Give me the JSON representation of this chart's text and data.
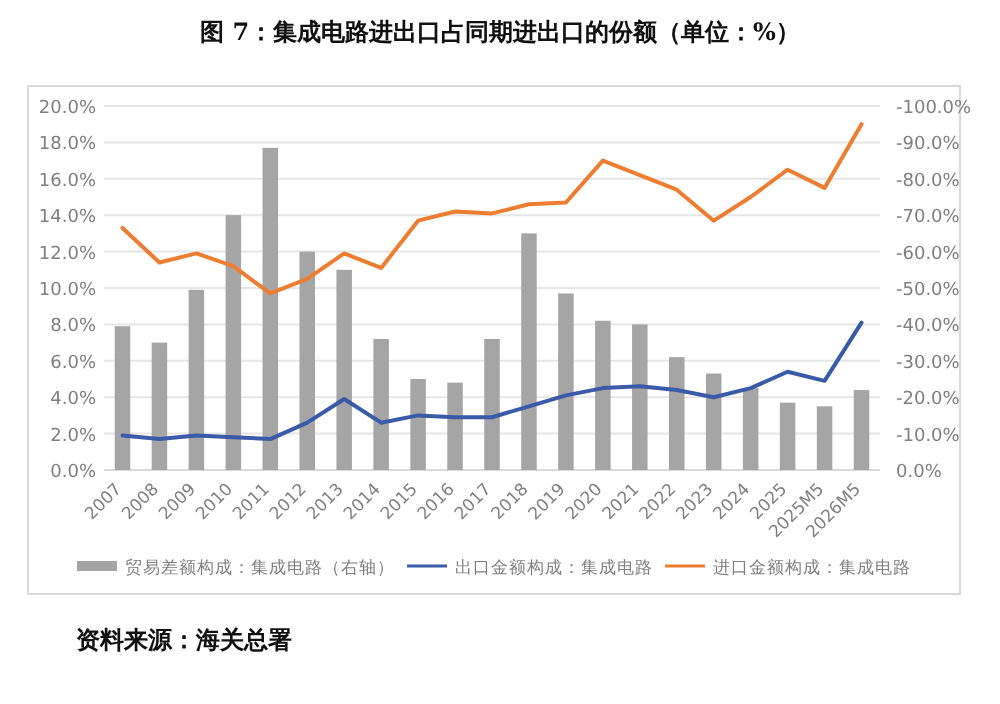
{
  "chart_data": {
    "type": "line",
    "title": "图 7：集成电路进出口占同期进出口的份额（单位：%）",
    "categories": [
      "2007",
      "2008",
      "2009",
      "2010",
      "2011",
      "2012",
      "2013",
      "2014",
      "2015",
      "2016",
      "2017",
      "2018",
      "2019",
      "2020",
      "2021",
      "2022",
      "2023",
      "2024",
      "2025",
      "2025M5",
      "2026M5"
    ],
    "series": [
      {
        "name": "贸易差额构成：集成电路（右轴）",
        "type": "bar",
        "axis": "y2",
        "color": "#a5a5a5",
        "values": [
          -39.5,
          -35,
          -49.5,
          -70,
          -88.5,
          -60,
          -55,
          -36,
          -25,
          -24,
          -36,
          -65,
          -48.5,
          -41,
          -40,
          -31,
          -26.5,
          -22.5,
          -18.5,
          -17.5,
          -22
        ]
      },
      {
        "name": "出口金额构成：集成电路",
        "color": "#3a5ba8",
        "values": [
          1.9,
          1.7,
          1.9,
          1.8,
          1.7,
          2.6,
          3.9,
          2.6,
          3.0,
          2.9,
          2.9,
          3.5,
          4.1,
          4.5,
          4.6,
          4.4,
          4.0,
          4.5,
          5.4,
          4.9,
          8.1
        ]
      },
      {
        "name": "进口金额构成：集成电路",
        "color": "#ed7d31",
        "values": [
          13.3,
          11.4,
          11.9,
          11.2,
          9.7,
          10.5,
          11.9,
          11.1,
          13.7,
          14.2,
          14.1,
          14.6,
          14.7,
          17.0,
          16.2,
          15.4,
          13.7,
          15.0,
          16.5,
          15.5,
          19.0
        ]
      }
    ],
    "ylim": [
      0,
      20
    ],
    "yticks": [
      {
        "value": 0,
        "label": "0.0%"
      },
      {
        "value": 2,
        "label": "2.0%"
      },
      {
        "value": 4,
        "label": "4.0%"
      },
      {
        "value": 6,
        "label": "6.0%"
      },
      {
        "value": 8,
        "label": "8.0%"
      },
      {
        "value": 10,
        "label": "10.0%"
      },
      {
        "value": 12,
        "label": "12.0%"
      },
      {
        "value": 14,
        "label": "14.0%"
      },
      {
        "value": 16,
        "label": "16.0%"
      },
      {
        "value": 18,
        "label": "18.0%"
      },
      {
        "value": 20,
        "label": "20.0%"
      }
    ],
    "y2lim": [
      0,
      -100
    ],
    "y2ticks": [
      {
        "value": 0,
        "label": "0.0%"
      },
      {
        "value": -10,
        "label": "-10.0%"
      },
      {
        "value": -20,
        "label": "-20.0%"
      },
      {
        "value": -30,
        "label": "-30.0%"
      },
      {
        "value": -40,
        "label": "-40.0%"
      },
      {
        "value": -50,
        "label": "-50.0%"
      },
      {
        "value": -60,
        "label": "-60.0%"
      },
      {
        "value": -70,
        "label": "-70.0%"
      },
      {
        "value": -80,
        "label": "-80.0%"
      },
      {
        "value": -90,
        "label": "-90.0%"
      },
      {
        "value": -100,
        "label": "-100.0%"
      }
    ],
    "grid": "y",
    "legend": "bottom",
    "annotations": [
      "资料来源：海关总署"
    ]
  }
}
